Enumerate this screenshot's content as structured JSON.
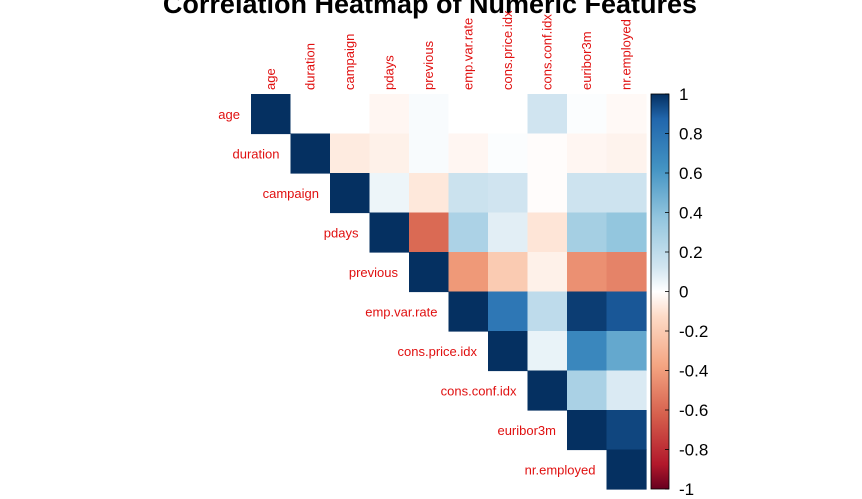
{
  "chart_data": {
    "type": "heatmap",
    "title": "Correlation Heatmap of Numeric Features",
    "layout": "upper-triangle",
    "variables": [
      "age",
      "duration",
      "campaign",
      "pdays",
      "previous",
      "emp.var.rate",
      "cons.price.idx",
      "cons.conf.idx",
      "euribor3m",
      "nr.employed"
    ],
    "matrix": [
      [
        1,
        0,
        0,
        -0.03,
        0.02,
        0,
        0,
        0.13,
        0.01,
        -0.02
      ],
      [
        0,
        1,
        -0.07,
        -0.05,
        0.02,
        -0.03,
        0.01,
        -0.01,
        -0.03,
        -0.04
      ],
      [
        0,
        -0.07,
        1,
        0.05,
        -0.08,
        0.15,
        0.13,
        -0.01,
        0.14,
        0.14
      ],
      [
        -0.03,
        -0.05,
        0.05,
        1,
        -0.59,
        0.27,
        0.08,
        -0.09,
        0.3,
        0.37
      ],
      [
        0.02,
        0.02,
        -0.08,
        -0.59,
        1,
        -0.42,
        -0.2,
        -0.05,
        -0.45,
        -0.5
      ],
      [
        0,
        -0.03,
        0.15,
        0.27,
        -0.42,
        1,
        0.78,
        0.2,
        0.97,
        0.91
      ],
      [
        0,
        0.01,
        0.13,
        0.08,
        -0.2,
        0.78,
        1,
        0.06,
        0.69,
        0.52
      ],
      [
        0.13,
        -0.01,
        -0.01,
        -0.09,
        -0.05,
        0.2,
        0.06,
        1,
        0.28,
        0.1
      ],
      [
        0.01,
        -0.03,
        0.14,
        0.3,
        -0.45,
        0.97,
        0.69,
        0.28,
        1,
        0.95
      ],
      [
        -0.02,
        -0.04,
        0.14,
        0.37,
        -0.5,
        0.91,
        0.52,
        0.1,
        0.95,
        1
      ]
    ],
    "color_scale": {
      "min": -1,
      "max": 1,
      "ticks": [
        "1",
        "0.8",
        "0.6",
        "0.4",
        "0.2",
        "0",
        "-0.2",
        "-0.4",
        "-0.6",
        "-0.8",
        "-1"
      ],
      "stops": [
        {
          "value": -1,
          "color": "#67001F"
        },
        {
          "value": -0.875,
          "color": "#B2182B"
        },
        {
          "value": -0.625,
          "color": "#D6604D"
        },
        {
          "value": -0.375,
          "color": "#F4A582"
        },
        {
          "value": -0.125,
          "color": "#FDDBC7"
        },
        {
          "value": 0,
          "color": "#FFFFFF"
        },
        {
          "value": 0.125,
          "color": "#D1E5F0"
        },
        {
          "value": 0.375,
          "color": "#92C5DE"
        },
        {
          "value": 0.625,
          "color": "#4393C3"
        },
        {
          "value": 0.875,
          "color": "#2166AC"
        },
        {
          "value": 1,
          "color": "#053061"
        }
      ]
    },
    "label_color": "#E01010",
    "legend_position": "right",
    "grid": false
  }
}
